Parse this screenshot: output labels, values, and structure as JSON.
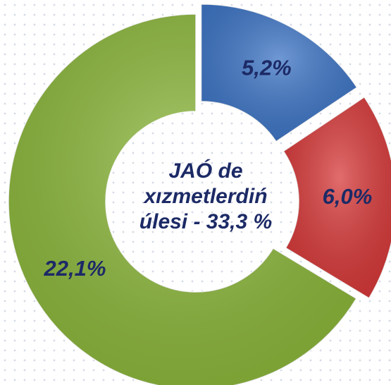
{
  "chart_data": {
    "type": "donut",
    "categories": [
      null,
      null,
      null
    ],
    "values": [
      5.2,
      6.0,
      22.1
    ],
    "value_labels": [
      "5,2%",
      "6,0%",
      "22,1%"
    ],
    "colors": [
      "#3f76c6",
      "#d83b3b",
      "#8db83d"
    ],
    "center_text": [
      "JAÓ de",
      "xızmetlerdiń",
      "úlesi - 33,3 %"
    ]
  }
}
